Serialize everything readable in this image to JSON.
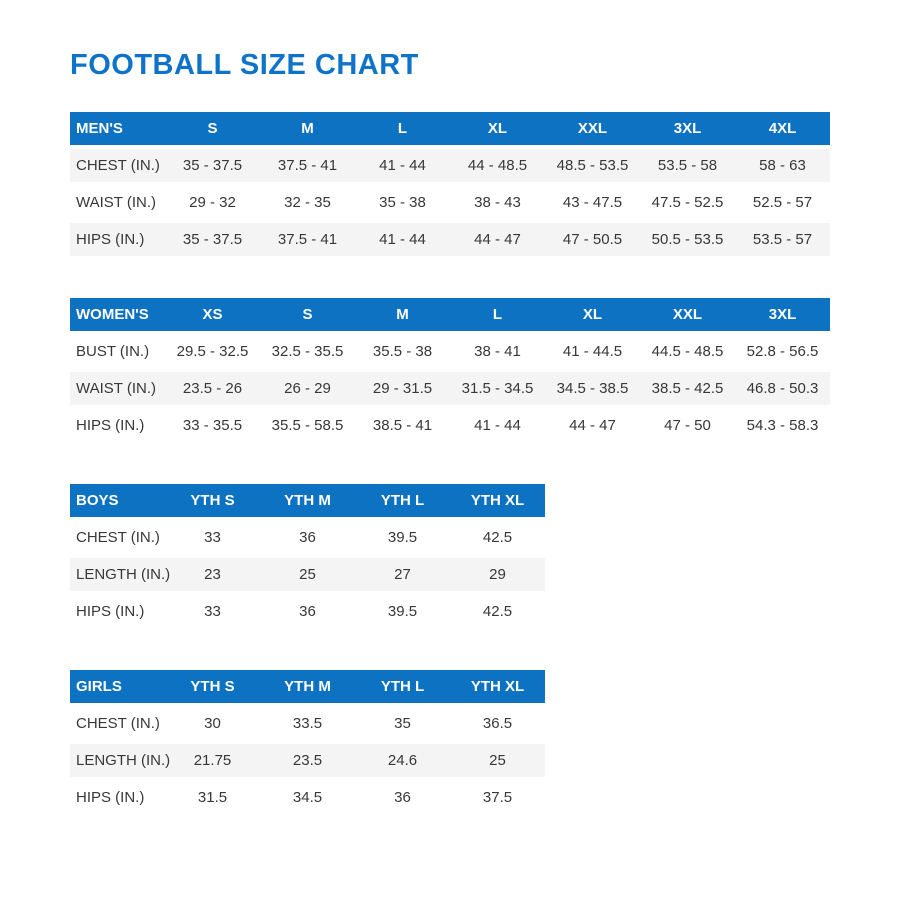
{
  "page_title": "FOOTBALL SIZE CHART",
  "colors": {
    "accent_blue": "#0e72c2",
    "title_blue": "#0f74c9",
    "row_shade": "#f4f4f4",
    "text": "#383838"
  },
  "chart_data": [
    {
      "type": "table",
      "title": "MEN'S",
      "columns": [
        "S",
        "M",
        "L",
        "XL",
        "XXL",
        "3XL",
        "4XL"
      ],
      "rows": [
        {
          "label": "CHEST (IN.)",
          "shaded": true,
          "values": [
            "35 - 37.5",
            "37.5 - 41",
            "41 - 44",
            "44 - 48.5",
            "48.5 - 53.5",
            "53.5 - 58",
            "58 - 63"
          ]
        },
        {
          "label": "WAIST (IN.)",
          "shaded": false,
          "values": [
            "29 - 32",
            "32 - 35",
            "35 - 38",
            "38 - 43",
            "43 - 47.5",
            "47.5 - 52.5",
            "52.5 - 57"
          ]
        },
        {
          "label": "HIPS (IN.)",
          "shaded": true,
          "values": [
            "35 - 37.5",
            "37.5 - 41",
            "41 - 44",
            "44 - 47",
            "47 - 50.5",
            "50.5 - 53.5",
            "53.5 - 57"
          ]
        }
      ]
    },
    {
      "type": "table",
      "title": "WOMEN'S",
      "columns": [
        "XS",
        "S",
        "M",
        "L",
        "XL",
        "XXL",
        "3XL"
      ],
      "rows": [
        {
          "label": "BUST (IN.)",
          "shaded": false,
          "values": [
            "29.5 - 32.5",
            "32.5 - 35.5",
            "35.5 - 38",
            "38 - 41",
            "41 - 44.5",
            "44.5 - 48.5",
            "52.8 - 56.5"
          ]
        },
        {
          "label": "WAIST (IN.)",
          "shaded": true,
          "values": [
            "23.5 - 26",
            "26 - 29",
            "29 - 31.5",
            "31.5 - 34.5",
            "34.5 - 38.5",
            "38.5 - 42.5",
            "46.8 - 50.3"
          ]
        },
        {
          "label": "HIPS (IN.)",
          "shaded": false,
          "values": [
            "33 - 35.5",
            "35.5 - 58.5",
            "38.5 - 41",
            "41 - 44",
            "44 - 47",
            "47 - 50",
            "54.3 - 58.3"
          ]
        }
      ]
    },
    {
      "type": "table",
      "title": "BOYS",
      "columns": [
        "YTH S",
        "YTH M",
        "YTH L",
        "YTH XL"
      ],
      "rows": [
        {
          "label": "CHEST (IN.)",
          "shaded": false,
          "values": [
            "33",
            "36",
            "39.5",
            "42.5"
          ]
        },
        {
          "label": "LENGTH (IN.)",
          "shaded": true,
          "values": [
            "23",
            "25",
            "27",
            "29"
          ]
        },
        {
          "label": "HIPS (IN.)",
          "shaded": false,
          "values": [
            "33",
            "36",
            "39.5",
            "42.5"
          ]
        }
      ]
    },
    {
      "type": "table",
      "title": "GIRLS",
      "columns": [
        "YTH S",
        "YTH M",
        "YTH L",
        "YTH XL"
      ],
      "rows": [
        {
          "label": "CHEST (IN.)",
          "shaded": false,
          "values": [
            "30",
            "33.5",
            "35",
            "36.5"
          ]
        },
        {
          "label": "LENGTH (IN.)",
          "shaded": true,
          "values": [
            "21.75",
            "23.5",
            "24.6",
            "25"
          ]
        },
        {
          "label": "HIPS (IN.)",
          "shaded": false,
          "values": [
            "31.5",
            "34.5",
            "36",
            "37.5"
          ]
        }
      ]
    }
  ]
}
